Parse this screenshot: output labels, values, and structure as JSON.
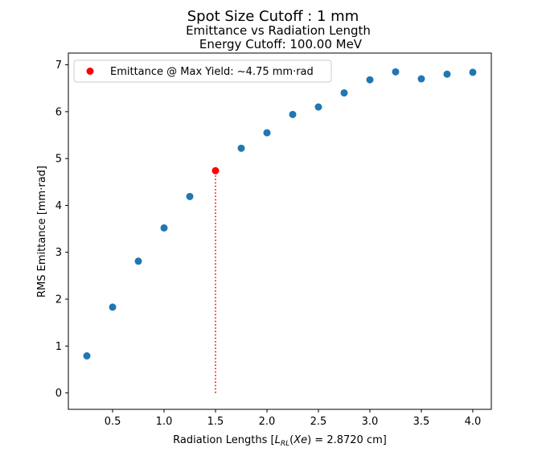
{
  "chart_data": {
    "type": "scatter",
    "suptitle": "Spot Size Cutoff : 1 mm",
    "title_line1": "Emittance vs Radiation Length",
    "title_line2": "Energy Cutoff: 100.00 MeV",
    "xlabel": "Radiation Lengths [L_RL(Xe) = 2.8720 cm]",
    "ylabel": "RMS Emittance [mm·rad]",
    "xlim": [
      0.07,
      4.18
    ],
    "ylim": [
      -0.35,
      7.25
    ],
    "xticks": [
      0.5,
      1.0,
      1.5,
      2.0,
      2.5,
      3.0,
      3.5,
      4.0
    ],
    "xtick_labels": [
      "0.5",
      "1.0",
      "1.5",
      "2.0",
      "2.5",
      "3.0",
      "3.5",
      "4.0"
    ],
    "yticks": [
      0,
      1,
      2,
      3,
      4,
      5,
      6,
      7
    ],
    "ytick_labels": [
      "0",
      "1",
      "2",
      "3",
      "4",
      "5",
      "6",
      "7"
    ],
    "grid": false,
    "legend_position": "upper-left",
    "series": [
      {
        "color": "#1f77b4",
        "x": [
          0.25,
          0.5,
          0.75,
          1.0,
          1.25,
          1.75,
          2.0,
          2.25,
          2.5,
          2.75,
          3.0,
          3.25,
          3.5,
          3.75,
          4.0
        ],
        "y": [
          0.79,
          1.83,
          2.81,
          3.52,
          4.19,
          5.22,
          5.55,
          5.94,
          6.1,
          6.4,
          6.68,
          6.85,
          6.7,
          6.8,
          6.84
        ]
      },
      {
        "name": "Emittance @ Max Yield: ~4.75 mm·rad",
        "color": "#ff0000",
        "x": [
          1.5
        ],
        "y": [
          4.74
        ]
      }
    ],
    "marker_line": {
      "x": 1.5,
      "y_from": 0,
      "y_to": 4.74,
      "style": "dotted",
      "color": "#ff0000"
    }
  }
}
